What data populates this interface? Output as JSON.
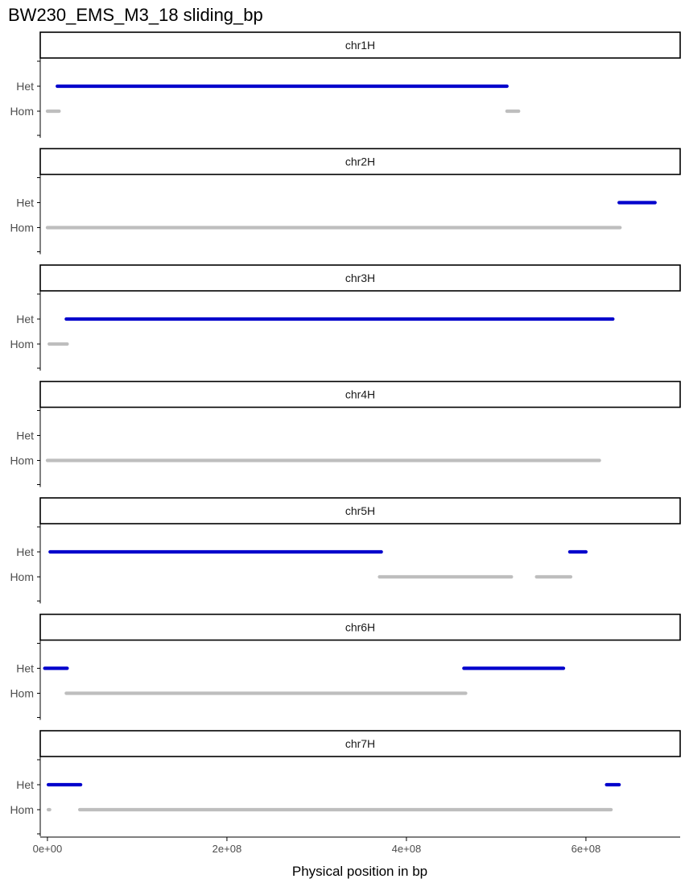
{
  "chart_data": {
    "type": "line",
    "title": "BW230_EMS_M3_18 sliding_bp",
    "xlabel": "Physical position in bp",
    "ylabel": "",
    "xlim": [
      -8000000,
      705000000
    ],
    "x_ticks": [
      0,
      200000000,
      400000000,
      600000000
    ],
    "x_tick_labels": [
      "0e+00",
      "2e+08",
      "4e+08",
      "6e+08"
    ],
    "y_categories": [
      "Het",
      "Hom"
    ],
    "grid": false,
    "legend": "none",
    "colors": {
      "Het": "#0000cc",
      "Hom": "#bebebe",
      "strip_fill": "#ffffff",
      "axis": "#000000"
    },
    "panels": [
      {
        "strip": "chr1H",
        "segments": [
          {
            "genotype": "Het",
            "start": 11000000,
            "end": 512000000
          },
          {
            "genotype": "Hom",
            "start": 0,
            "end": 13000000
          },
          {
            "genotype": "Hom",
            "start": 512000000,
            "end": 525000000
          }
        ]
      },
      {
        "strip": "chr2H",
        "segments": [
          {
            "genotype": "Het",
            "start": 637000000,
            "end": 677000000
          },
          {
            "genotype": "Hom",
            "start": 0,
            "end": 638000000
          }
        ]
      },
      {
        "strip": "chr3H",
        "segments": [
          {
            "genotype": "Het",
            "start": 21000000,
            "end": 630000000
          },
          {
            "genotype": "Hom",
            "start": 2000000,
            "end": 22000000
          }
        ]
      },
      {
        "strip": "chr4H",
        "segments": [
          {
            "genotype": "Hom",
            "start": 0,
            "end": 615000000
          }
        ]
      },
      {
        "strip": "chr5H",
        "segments": [
          {
            "genotype": "Het",
            "start": 3000000,
            "end": 372000000
          },
          {
            "genotype": "Het",
            "start": 582000000,
            "end": 600000000
          },
          {
            "genotype": "Hom",
            "start": 370000000,
            "end": 517000000
          },
          {
            "genotype": "Hom",
            "start": 545000000,
            "end": 583000000
          }
        ]
      },
      {
        "strip": "chr6H",
        "segments": [
          {
            "genotype": "Het",
            "start": -3000000,
            "end": 22000000
          },
          {
            "genotype": "Het",
            "start": 464000000,
            "end": 575000000
          },
          {
            "genotype": "Hom",
            "start": 21000000,
            "end": 466000000
          }
        ]
      },
      {
        "strip": "chr7H",
        "segments": [
          {
            "genotype": "Het",
            "start": 1000000,
            "end": 37000000
          },
          {
            "genotype": "Het",
            "start": 623000000,
            "end": 637000000
          },
          {
            "genotype": "Hom",
            "start": 1000000,
            "end": 2500000
          },
          {
            "genotype": "Hom",
            "start": 36000000,
            "end": 628000000
          }
        ]
      }
    ]
  }
}
